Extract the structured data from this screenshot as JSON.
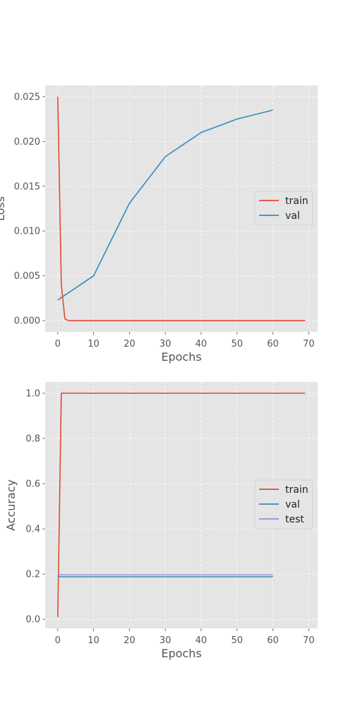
{
  "colors": {
    "train": "#E24A33",
    "val": "#348ABD",
    "test": "#988ED5",
    "panel_bg": "#E5E5E5",
    "grid": "#FFFFFF",
    "tick_text": "#555555"
  },
  "chart_data": [
    {
      "type": "line",
      "title": "",
      "xlabel": "Epochs",
      "ylabel": "Loss",
      "xlim": [
        -3.5,
        72.5
      ],
      "ylim": [
        -0.00125,
        0.02625
      ],
      "xticks": [
        0,
        10,
        20,
        30,
        40,
        50,
        60,
        70
      ],
      "xtick_labels": [
        "0",
        "10",
        "20",
        "30",
        "40",
        "50",
        "60",
        "70"
      ],
      "yticks": [
        0.0,
        0.005,
        0.01,
        0.015,
        0.02,
        0.025
      ],
      "ytick_labels": [
        "0.000",
        "0.005",
        "0.010",
        "0.015",
        "0.020",
        "0.025"
      ],
      "grid": true,
      "legend_position": "center-right",
      "series": [
        {
          "name": "train",
          "color_key": "train",
          "x": [
            0,
            1,
            2,
            3,
            5,
            10,
            20,
            30,
            40,
            50,
            60,
            69
          ],
          "y": [
            0.025,
            0.004,
            0.0002,
            0.0,
            0.0,
            0.0,
            0.0,
            0.0,
            0.0,
            0.0,
            0.0,
            0.0
          ]
        },
        {
          "name": "val",
          "color_key": "val",
          "x": [
            0,
            10,
            20,
            30,
            40,
            50,
            60
          ],
          "y": [
            0.0023,
            0.005,
            0.0131,
            0.0183,
            0.021,
            0.0225,
            0.0235
          ]
        }
      ]
    },
    {
      "type": "line",
      "title": "",
      "xlabel": "Epochs",
      "ylabel": "Accuracy",
      "xlim": [
        -3.5,
        72.5
      ],
      "ylim": [
        -0.04,
        1.05
      ],
      "xticks": [
        0,
        10,
        20,
        30,
        40,
        50,
        60,
        70
      ],
      "xtick_labels": [
        "0",
        "10",
        "20",
        "30",
        "40",
        "50",
        "60",
        "70"
      ],
      "yticks": [
        0.0,
        0.2,
        0.4,
        0.6,
        0.8,
        1.0
      ],
      "ytick_labels": [
        "0.0",
        "0.2",
        "0.4",
        "0.6",
        "0.8",
        "1.0"
      ],
      "grid": true,
      "legend_position": "center-right",
      "series": [
        {
          "name": "train",
          "color_key": "train",
          "x": [
            0,
            1,
            2,
            10,
            20,
            30,
            40,
            50,
            60,
            69
          ],
          "y": [
            0.01,
            1.0,
            1.0,
            1.0,
            1.0,
            1.0,
            1.0,
            1.0,
            1.0,
            1.0
          ]
        },
        {
          "name": "val",
          "color_key": "val",
          "x": [
            0,
            60
          ],
          "y": [
            0.188,
            0.188
          ]
        },
        {
          "name": "test",
          "color_key": "test",
          "x": [
            0,
            60
          ],
          "y": [
            0.197,
            0.197
          ]
        }
      ]
    }
  ]
}
